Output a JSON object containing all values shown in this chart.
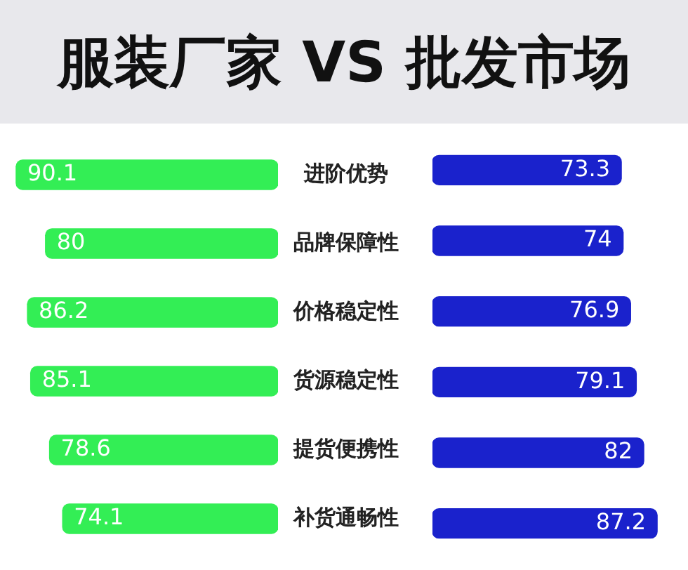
{
  "chart_data": [
    {
      "type": "bar",
      "orientation": "horizontal",
      "title": "服装厂家 VS 批发市场",
      "categories": [
        "进阶优势",
        "品牌保障性",
        "价格稳定性",
        "货源稳定性",
        "提货便携性",
        "补货通畅性"
      ],
      "tick_labels": "y",
      "series": [
        {
          "color": "#33ee55",
          "values": [
            90.1,
            80,
            86.2,
            85.1,
            78.6,
            74.1
          ]
        }
      ],
      "data_labels": true
    },
    {
      "type": "bar",
      "orientation": "horizontal",
      "categories": [
        null,
        null,
        null,
        null,
        null,
        null
      ],
      "tick_labels": false,
      "series": [
        {
          "color": "#1a22cc",
          "values": [
            73.3,
            74,
            76.9,
            79.1,
            82,
            87.2
          ]
        }
      ],
      "data_labels": true
    }
  ]
}
